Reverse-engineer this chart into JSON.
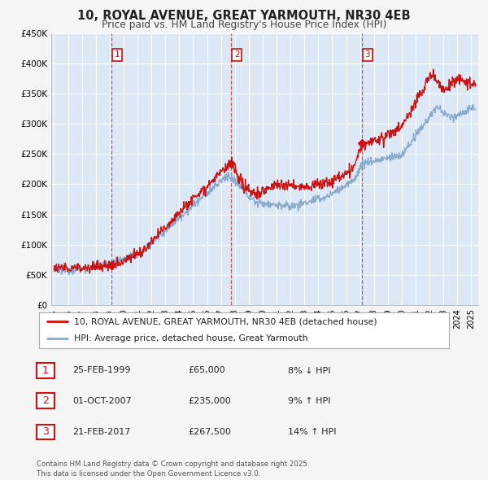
{
  "title": "10, ROYAL AVENUE, GREAT YARMOUTH, NR30 4EB",
  "subtitle": "Price paid vs. HM Land Registry's House Price Index (HPI)",
  "ylim": [
    0,
    450000
  ],
  "yticks": [
    0,
    50000,
    100000,
    150000,
    200000,
    250000,
    300000,
    350000,
    400000,
    450000
  ],
  "ytick_labels": [
    "£0",
    "£50K",
    "£100K",
    "£150K",
    "£200K",
    "£250K",
    "£300K",
    "£350K",
    "£400K",
    "£450K"
  ],
  "xlim_start": 1994.8,
  "xlim_end": 2025.5,
  "fig_bg_color": "#f5f5f5",
  "plot_bg_color": "#dce8f5",
  "grid_color": "#ffffff",
  "red_color": "#cc1111",
  "blue_color": "#88aacc",
  "vline_color": "#cc4444",
  "sale_dates": [
    1999.15,
    2007.75,
    2017.14
  ],
  "sale_prices": [
    65000,
    235000,
    267500
  ],
  "sale_labels": [
    "1",
    "2",
    "3"
  ],
  "legend_label_red": "10, ROYAL AVENUE, GREAT YARMOUTH, NR30 4EB (detached house)",
  "legend_label_blue": "HPI: Average price, detached house, Great Yarmouth",
  "table_rows": [
    {
      "num": "1",
      "date": "25-FEB-1999",
      "price": "£65,000",
      "hpi": "8% ↓ HPI"
    },
    {
      "num": "2",
      "date": "01-OCT-2007",
      "price": "£235,000",
      "hpi": "9% ↑ HPI"
    },
    {
      "num": "3",
      "date": "21-FEB-2017",
      "price": "£267,500",
      "hpi": "14% ↑ HPI"
    }
  ],
  "footer": "Contains HM Land Registry data © Crown copyright and database right 2025.\nThis data is licensed under the Open Government Licence v3.0."
}
